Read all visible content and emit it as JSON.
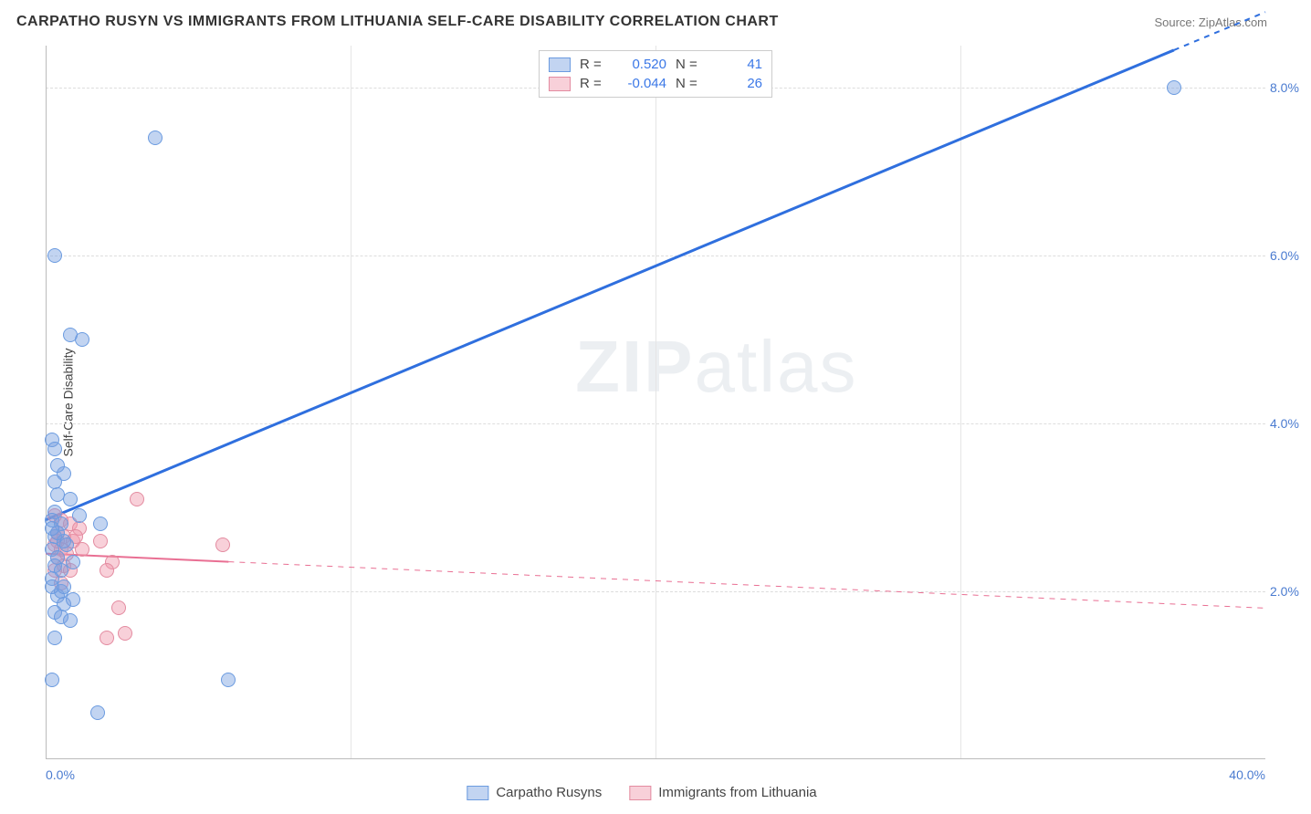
{
  "header": {
    "title": "CARPATHO RUSYN VS IMMIGRANTS FROM LITHUANIA SELF-CARE DISABILITY CORRELATION CHART",
    "source": "Source: ZipAtlas.com"
  },
  "watermark": {
    "part1": "ZIP",
    "part2": "atlas"
  },
  "chart": {
    "ylabel": "Self-Care Disability",
    "xlim": [
      0,
      40
    ],
    "ylim": [
      0,
      8.5
    ],
    "xticks": [
      {
        "v": 0,
        "label": "0.0%",
        "align": "left"
      },
      {
        "v": 40,
        "label": "40.0%",
        "align": "right"
      }
    ],
    "xgrid": [
      10,
      20,
      30
    ],
    "yticks": [
      {
        "v": 2.0,
        "label": "2.0%"
      },
      {
        "v": 4.0,
        "label": "4.0%"
      },
      {
        "v": 6.0,
        "label": "6.0%"
      },
      {
        "v": 8.0,
        "label": "8.0%"
      }
    ],
    "marker_radius": 8,
    "series": {
      "a": {
        "name": "Carpatho Rusyns",
        "fill": "rgba(120,160,225,0.45)",
        "stroke": "#6b9be0",
        "line_color": "#2f6fde",
        "line_width": 3,
        "R": "0.520",
        "N": "41",
        "trend": {
          "x1": 0,
          "y1": 2.85,
          "x2": 40,
          "y2": 8.9,
          "observed_xmax": 37
        },
        "points": [
          [
            0.2,
            3.8
          ],
          [
            0.3,
            3.7
          ],
          [
            0.6,
            3.4
          ],
          [
            0.4,
            3.15
          ],
          [
            0.8,
            3.1
          ],
          [
            0.3,
            2.95
          ],
          [
            1.1,
            2.9
          ],
          [
            0.2,
            2.85
          ],
          [
            0.5,
            2.8
          ],
          [
            1.8,
            2.8
          ],
          [
            0.3,
            2.65
          ],
          [
            0.6,
            2.6
          ],
          [
            0.2,
            2.5
          ],
          [
            0.4,
            2.4
          ],
          [
            0.9,
            2.35
          ],
          [
            0.3,
            2.3
          ],
          [
            0.5,
            2.25
          ],
          [
            0.2,
            2.15
          ],
          [
            0.4,
            1.95
          ],
          [
            0.6,
            1.85
          ],
          [
            0.3,
            1.75
          ],
          [
            0.5,
            1.7
          ],
          [
            0.8,
            1.65
          ],
          [
            0.3,
            1.45
          ],
          [
            0.2,
            0.95
          ],
          [
            6.0,
            0.95
          ],
          [
            1.7,
            0.55
          ],
          [
            1.2,
            5.0
          ],
          [
            0.8,
            5.05
          ],
          [
            0.3,
            6.0
          ],
          [
            3.6,
            7.4
          ],
          [
            0.5,
            2.0
          ],
          [
            0.3,
            3.3
          ],
          [
            37.0,
            8.0
          ],
          [
            0.7,
            2.55
          ],
          [
            0.4,
            2.7
          ],
          [
            0.2,
            2.05
          ],
          [
            0.9,
            1.9
          ],
          [
            0.4,
            3.5
          ],
          [
            0.2,
            2.75
          ],
          [
            0.6,
            2.05
          ]
        ]
      },
      "b": {
        "name": "Immigrants from Lithuania",
        "fill": "rgba(240,150,170,0.45)",
        "stroke": "#e38ba0",
        "line_color": "#e96f93",
        "line_width": 2,
        "R": "-0.044",
        "N": "26",
        "trend": {
          "x1": 0,
          "y1": 2.45,
          "x2": 40,
          "y2": 1.8,
          "observed_xmax": 6
        },
        "points": [
          [
            0.3,
            2.9
          ],
          [
            0.5,
            2.85
          ],
          [
            0.8,
            2.8
          ],
          [
            1.1,
            2.75
          ],
          [
            0.4,
            2.7
          ],
          [
            0.6,
            2.65
          ],
          [
            0.9,
            2.6
          ],
          [
            1.8,
            2.6
          ],
          [
            0.3,
            2.55
          ],
          [
            0.5,
            2.5
          ],
          [
            1.2,
            2.5
          ],
          [
            0.4,
            2.4
          ],
          [
            2.2,
            2.35
          ],
          [
            5.8,
            2.55
          ],
          [
            3.0,
            3.1
          ],
          [
            0.6,
            2.3
          ],
          [
            0.3,
            2.25
          ],
          [
            0.8,
            2.25
          ],
          [
            2.0,
            2.25
          ],
          [
            2.4,
            1.8
          ],
          [
            0.5,
            2.1
          ],
          [
            2.6,
            1.5
          ],
          [
            2.0,
            1.45
          ],
          [
            0.4,
            2.6
          ],
          [
            0.7,
            2.45
          ],
          [
            1.0,
            2.65
          ]
        ]
      }
    }
  },
  "legend_top": {
    "r_label": "R =",
    "n_label": "N ="
  }
}
